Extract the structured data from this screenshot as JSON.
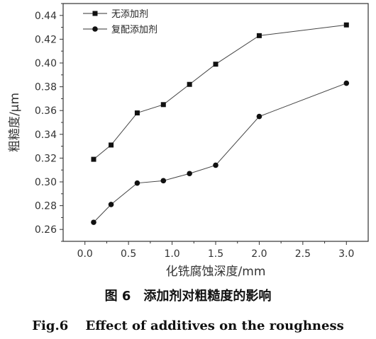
{
  "chart_data": {
    "type": "line",
    "xlabel": "化铣腐蚀深度/mm",
    "ylabel": "粗糙度/μm",
    "xlim": [
      -0.25,
      3.25
    ],
    "ylim": [
      0.25,
      0.45
    ],
    "xticks": [
      "0.0",
      "0.5",
      "1.0",
      "1.5",
      "2.0",
      "2.5",
      "3.0"
    ],
    "yticks": [
      "0.26",
      "0.28",
      "0.30",
      "0.32",
      "0.34",
      "0.36",
      "0.38",
      "0.40",
      "0.42",
      "0.44"
    ],
    "legend_position": "top-left",
    "grid": false,
    "series": [
      {
        "name": "无添加剂",
        "marker": "square",
        "x": [
          0.1,
          0.3,
          0.6,
          0.9,
          1.2,
          1.5,
          2.0,
          3.0
        ],
        "y": [
          0.319,
          0.331,
          0.358,
          0.365,
          0.382,
          0.399,
          0.423,
          0.432
        ]
      },
      {
        "name": "复配添加剂",
        "marker": "circle",
        "x": [
          0.1,
          0.3,
          0.6,
          0.9,
          1.2,
          1.5,
          2.0,
          3.0
        ],
        "y": [
          0.266,
          0.281,
          0.299,
          0.301,
          0.307,
          0.314,
          0.355,
          0.383
        ]
      }
    ]
  },
  "caption": {
    "zh": "图 6　添加剂对粗糙度的影响",
    "en": "Fig.6　 Effect of additives on the roughness"
  }
}
